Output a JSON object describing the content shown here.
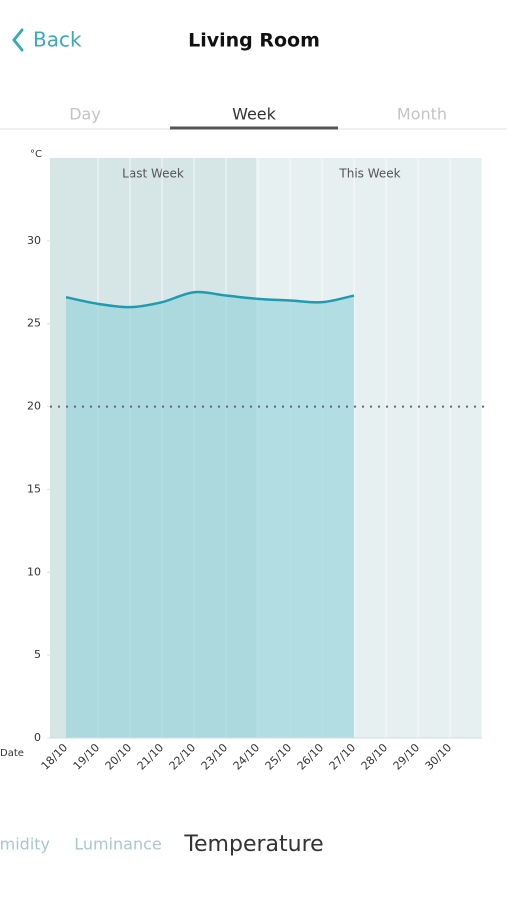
{
  "header": {
    "back": "Back",
    "title": "Living Room"
  },
  "tabs": [
    "Day",
    "Week",
    "Month"
  ],
  "chart_data": {
    "type": "line",
    "unit": "°C",
    "x_label": "Date",
    "annotations": [
      "Last Week",
      "This Week"
    ],
    "categories": [
      "18/10",
      "19/10",
      "20/10",
      "21/10",
      "22/10",
      "23/10",
      "24/10",
      "25/10",
      "26/10",
      "27/10",
      "28/10",
      "29/10",
      "30/10"
    ],
    "series": [
      {
        "color": "#1f9bb1",
        "values": [
          26.6,
          26.2,
          26.0,
          26.3,
          26.9,
          26.7,
          26.5,
          26.4,
          26.3,
          26.7,
          null,
          null,
          null
        ]
      }
    ],
    "target": 20,
    "ylim": [
      0,
      35
    ],
    "yticks": [
      0,
      5,
      10,
      15,
      20,
      25,
      30
    ]
  },
  "sensors": [
    "Humidity",
    "Luminance",
    "Temperature"
  ]
}
